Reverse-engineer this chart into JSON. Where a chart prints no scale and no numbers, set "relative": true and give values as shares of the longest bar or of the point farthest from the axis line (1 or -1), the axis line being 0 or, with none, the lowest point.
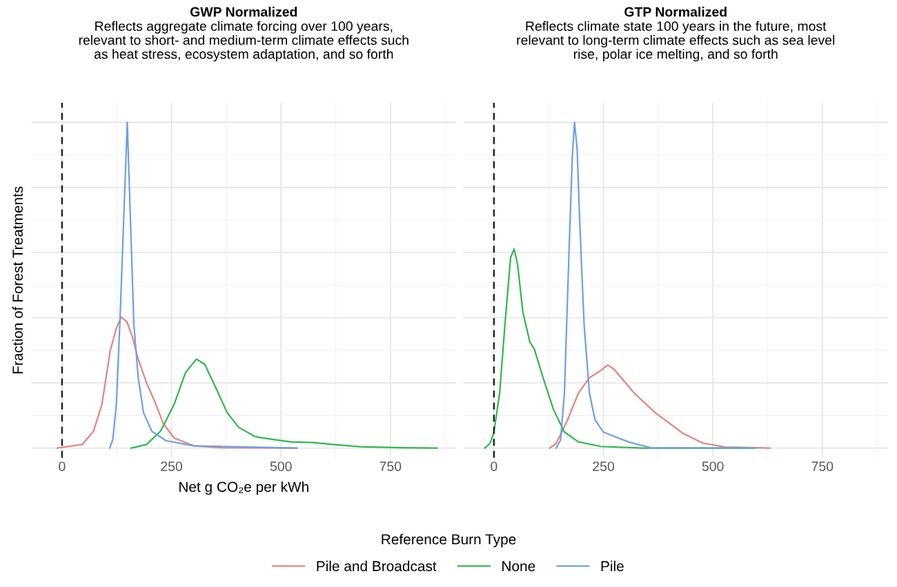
{
  "chart_data": [
    {
      "type": "line",
      "title": "GWP Normalized",
      "subtitle": "Reflects aggregate climate forcing over 100 years,\nrelevant to short- and medium-term climate effects such\nas heat stress, ecosystem adaptation, and so forth",
      "xlabel": "Net g CO₂e per kWh",
      "ylabel": "Fraction of Forest Treatments",
      "legend_title": "Reference Burn Type",
      "legend": "bottom",
      "relative": true,
      "grid": true,
      "tick_labels": "x",
      "xlim": [
        -70,
        900
      ],
      "xticks": [
        0,
        250,
        500,
        750
      ],
      "ref_lines": [
        {
          "axis": "x",
          "value": 0,
          "color": "#222222",
          "line_style": "dashed"
        }
      ],
      "series": [
        {
          "name": "Pile and Broadcast",
          "color": "#e8837a",
          "x": [
            -11,
            46,
            72,
            91,
            110,
            123,
            135,
            148,
            161,
            174,
            193,
            212,
            231,
            256,
            301,
            364,
            536
          ],
          "values": [
            0,
            0.011,
            0.052,
            0.134,
            0.298,
            0.364,
            0.402,
            0.388,
            0.339,
            0.273,
            0.2,
            0.142,
            0.076,
            0.031,
            0.007,
            0.001,
            0
          ]
        },
        {
          "name": "None",
          "color": "#2eb84a",
          "x": [
            158,
            193,
            225,
            256,
            282,
            307,
            326,
            352,
            377,
            403,
            441,
            479,
            523,
            574,
            619,
            682,
            778,
            857
          ],
          "values": [
            0,
            0.011,
            0.052,
            0.134,
            0.232,
            0.273,
            0.257,
            0.183,
            0.109,
            0.064,
            0.035,
            0.027,
            0.019,
            0.017,
            0.011,
            0.004,
            0.001,
            0
          ]
        },
        {
          "name": "Pile",
          "color": "#6d9eeb",
          "x": [
            109,
            116,
            124,
            132,
            141,
            149,
            156,
            164,
            174,
            186,
            205,
            237,
            301,
            536
          ],
          "values": [
            0,
            0.027,
            0.134,
            0.381,
            0.709,
            1.0,
            0.709,
            0.381,
            0.216,
            0.109,
            0.052,
            0.023,
            0.007,
            0
          ]
        }
      ]
    },
    {
      "type": "line",
      "title": "GTP Normalized",
      "subtitle": "Reflects climate state 100 years in the future, most\nrelevant to long-term climate effects such as sea level\nrise, polar ice melting, and so forth",
      "relative": true,
      "grid": true,
      "tick_labels": "x",
      "xlim": [
        -70,
        900
      ],
      "xticks": [
        0,
        250,
        500,
        750
      ],
      "ref_lines": [
        {
          "axis": "x",
          "value": 0,
          "color": "#222222",
          "line_style": "dashed"
        }
      ],
      "series": [
        {
          "color": "#e8837a",
          "x": [
            127,
            142,
            168,
            193,
            218,
            244,
            260,
            275,
            320,
            370,
            433,
            478,
            528,
            630
          ],
          "values": [
            0,
            0.014,
            0.086,
            0.169,
            0.216,
            0.238,
            0.255,
            0.241,
            0.169,
            0.107,
            0.044,
            0.015,
            0.003,
            0
          ]
        },
        {
          "color": "#2eb84a",
          "x": [
            -21,
            -9,
            0,
            13,
            25,
            38,
            46,
            54,
            66,
            82,
            92,
            111,
            136,
            161,
            193,
            244,
            339,
            434,
            592
          ],
          "values": [
            0,
            0.014,
            0.049,
            0.169,
            0.377,
            0.585,
            0.611,
            0.564,
            0.418,
            0.325,
            0.305,
            0.221,
            0.118,
            0.049,
            0.019,
            0.005,
            0,
            0,
            0
          ]
        },
        {
          "color": "#6d9eeb",
          "x": [
            142,
            152,
            161,
            171,
            179,
            184,
            190,
            196,
            206,
            218,
            231,
            250,
            269,
            307,
            358,
            598
          ],
          "values": [
            0,
            0.024,
            0.169,
            0.585,
            0.896,
            1,
            0.917,
            0.689,
            0.377,
            0.169,
            0.086,
            0.049,
            0.039,
            0.019,
            0.001,
            0
          ]
        }
      ]
    }
  ]
}
